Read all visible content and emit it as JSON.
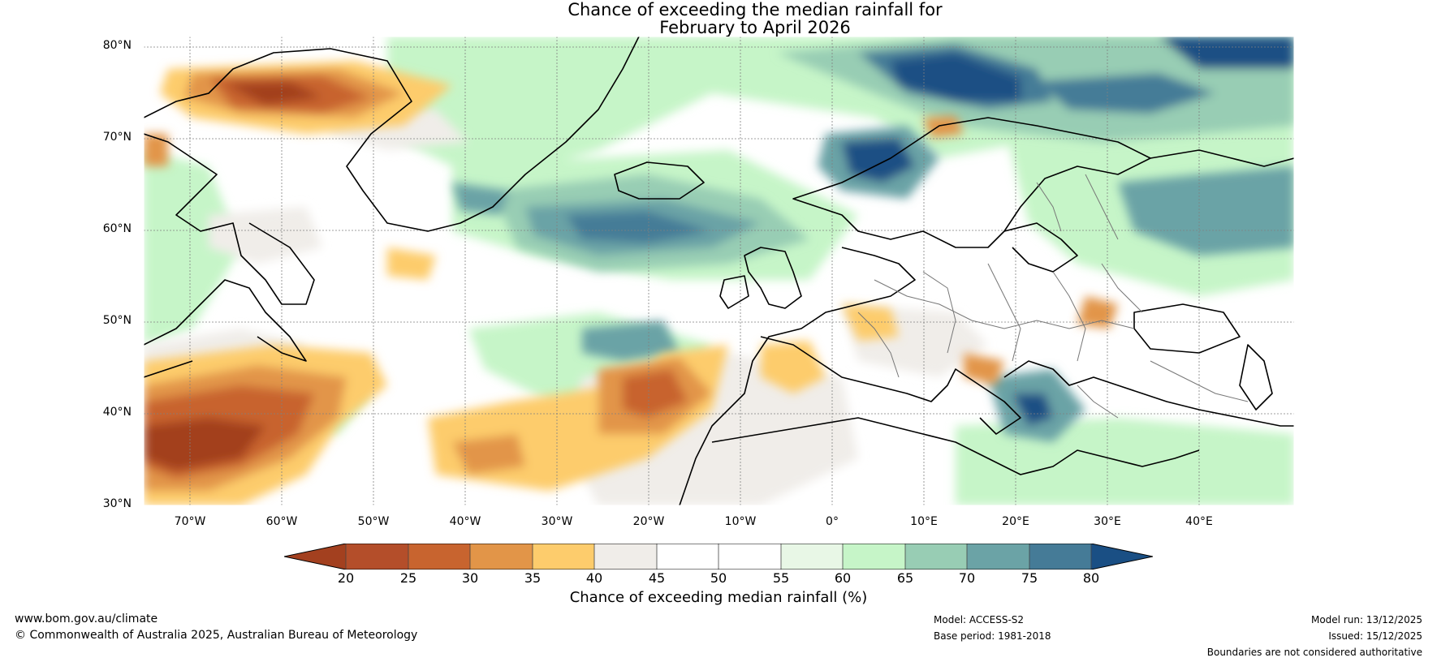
{
  "title": {
    "line1": "Chance of exceeding the median rainfall for",
    "line2": "February to April 2026"
  },
  "map": {
    "lat_labels": [
      "80°N",
      "70°N",
      "60°N",
      "50°N",
      "40°N",
      "30°N"
    ],
    "lon_labels": [
      "70°W",
      "60°W",
      "50°W",
      "40°W",
      "30°W",
      "20°W",
      "10°W",
      "0°",
      "10°E",
      "20°E",
      "30°E",
      "40°E"
    ]
  },
  "colorbar": {
    "ticks": [
      "20",
      "25",
      "30",
      "35",
      "40",
      "45",
      "50",
      "55",
      "60",
      "65",
      "70",
      "75",
      "80"
    ],
    "colors": [
      "#a3401f",
      "#b44e2a",
      "#c8642f",
      "#e29548",
      "#fdcc6c",
      "#f0ede9",
      "#ffffff",
      "#ffffff",
      "#e8f7e6",
      "#c6f5c8",
      "#98cdb4",
      "#6ba3a6",
      "#457b97",
      "#1a4f84"
    ],
    "label": "Chance of exceeding median rainfall (%)"
  },
  "footer": {
    "website": "www.bom.gov.au/climate",
    "copyright": "© Commonwealth of Australia 2025, Australian Bureau of Meteorology",
    "model": "Model: ACCESS-S2",
    "base_period": "Base period: 1981-2018",
    "model_run": "Model run: 13/12/2025",
    "issued": "Issued: 15/12/2025",
    "boundaries": "Boundaries are not considered authoritative"
  }
}
